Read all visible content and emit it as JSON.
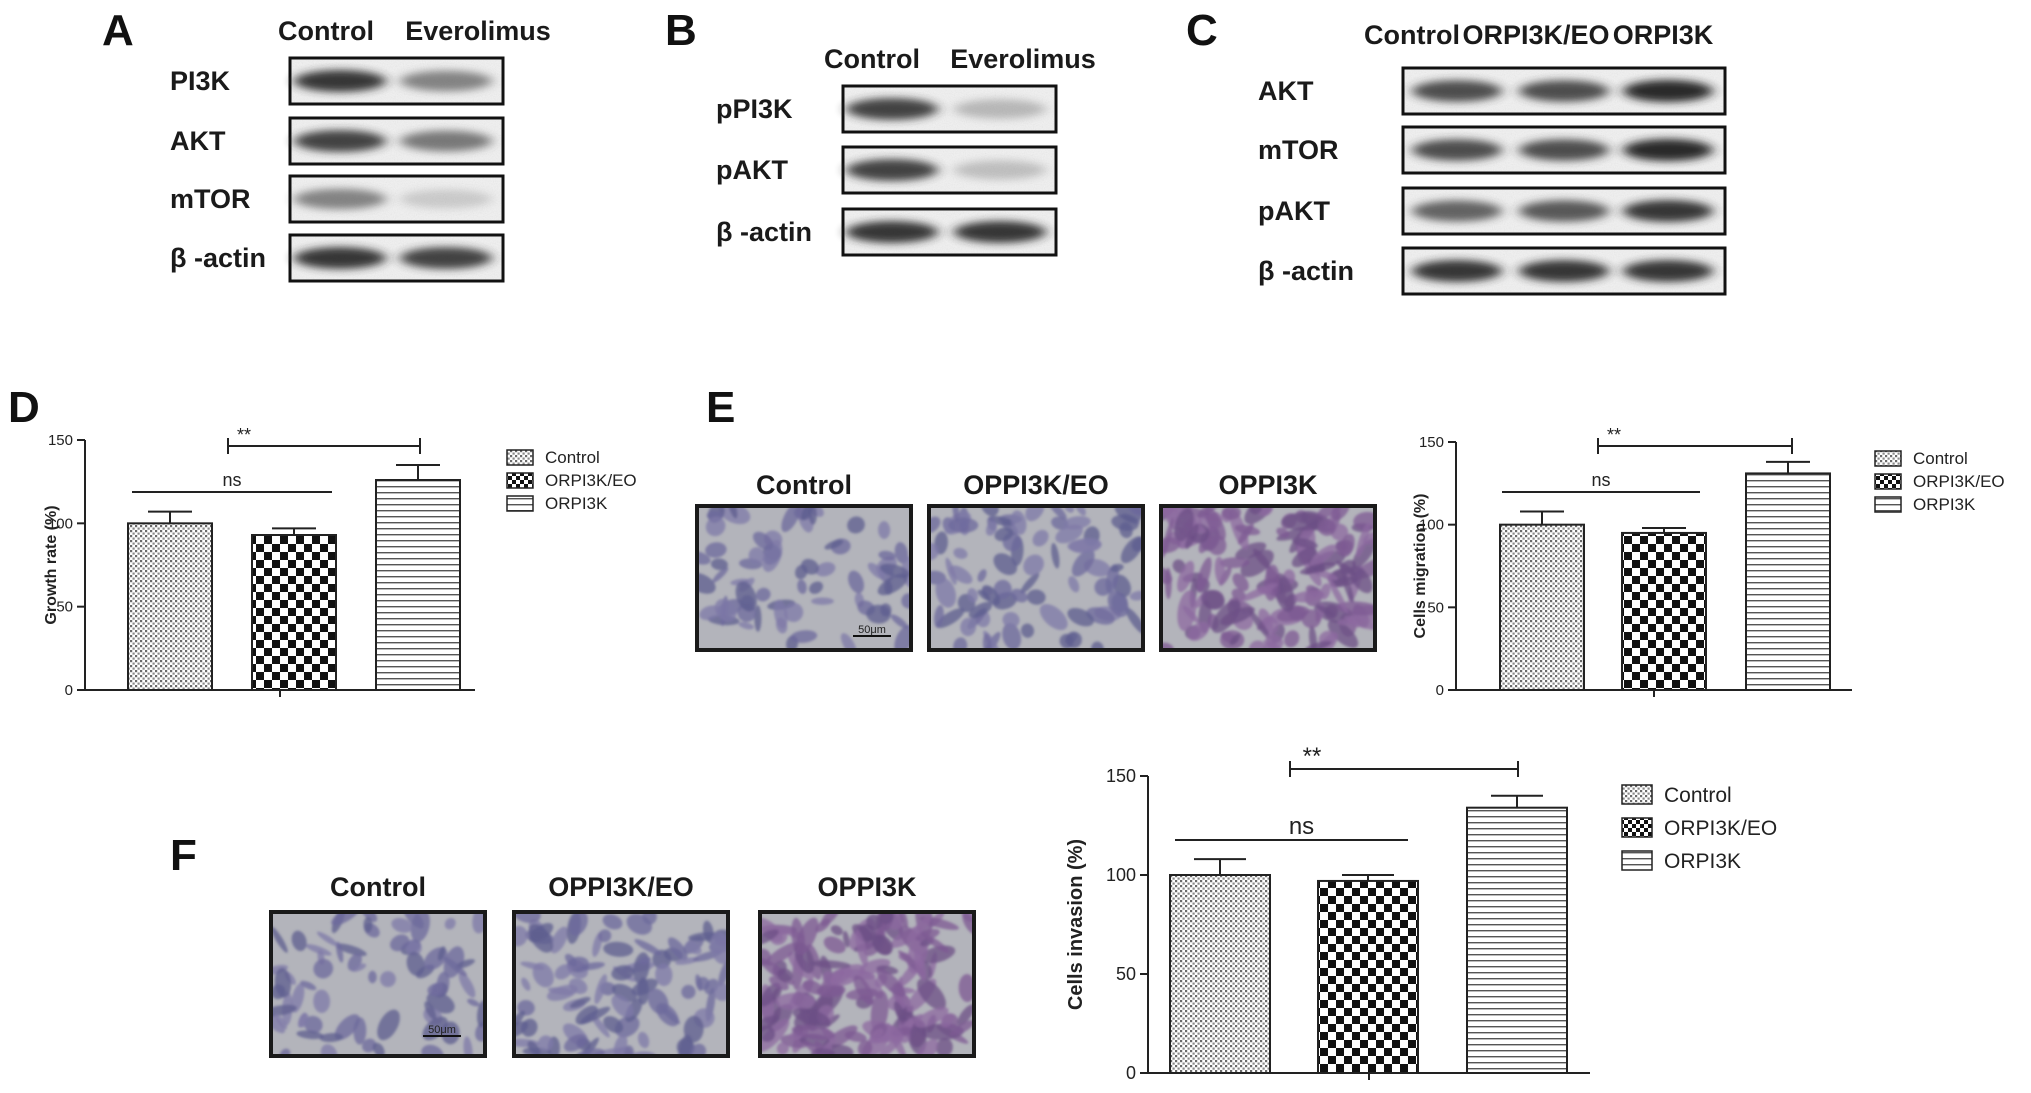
{
  "panels": {
    "A": {
      "label": "A",
      "lanes": [
        "Control",
        "Everolimus"
      ],
      "rows": [
        {
          "name": "PI3K",
          "intensity": [
            0.9,
            0.55
          ]
        },
        {
          "name": "AKT",
          "intensity": [
            0.85,
            0.6
          ]
        },
        {
          "name": "mTOR",
          "intensity": [
            0.55,
            0.12
          ]
        },
        {
          "name": "β -actin",
          "intensity": [
            0.9,
            0.85
          ]
        }
      ]
    },
    "B": {
      "label": "B",
      "lanes": [
        "Control",
        "Everolimus"
      ],
      "rows": [
        {
          "name": "pPI3K",
          "intensity": [
            0.85,
            0.25
          ]
        },
        {
          "name": "pAKT",
          "intensity": [
            0.85,
            0.2
          ]
        },
        {
          "name": "β -actin",
          "intensity": [
            0.9,
            0.9
          ]
        }
      ]
    },
    "C": {
      "label": "C",
      "lanes": [
        "Control",
        "ORPI3K/EO",
        "ORPI3K"
      ],
      "rows": [
        {
          "name": "AKT",
          "intensity": [
            0.8,
            0.8,
            0.95
          ]
        },
        {
          "name": "mTOR",
          "intensity": [
            0.8,
            0.8,
            0.95
          ]
        },
        {
          "name": "pAKT",
          "intensity": [
            0.7,
            0.75,
            0.9
          ]
        },
        {
          "name": "β -actin",
          "intensity": [
            0.9,
            0.9,
            0.9
          ]
        }
      ]
    },
    "D": {
      "label": "D"
    },
    "E": {
      "label": "E",
      "images": [
        "Control",
        "OPPI3K/EO",
        "OPPI3K"
      ],
      "scale_bar": "50μm"
    },
    "F": {
      "label": "F",
      "images": [
        "Control",
        "OPPI3K/EO",
        "OPPI3K"
      ],
      "scale_bar": "50μm"
    }
  },
  "chart_data": [
    {
      "panel": "D",
      "type": "bar",
      "categories": [
        "Control",
        "ORPI3K/EO",
        "ORPI3K"
      ],
      "values": [
        100,
        93,
        126
      ],
      "errors": [
        7,
        4,
        9
      ],
      "ylabel": "Growth rate (%)",
      "ylim": [
        0,
        150
      ],
      "yticks": [
        0,
        50,
        100,
        150
      ],
      "legend": [
        "Control",
        "ORPI3K/EO",
        "ORPI3K"
      ],
      "legend_position": "right",
      "annotations": [
        {
          "text": "**",
          "between": [
            "ORPI3K/EO",
            "ORPI3K"
          ]
        },
        {
          "text": "ns",
          "between": [
            "Control",
            "ORPI3K/EO"
          ]
        }
      ]
    },
    {
      "panel": "E",
      "type": "bar",
      "categories": [
        "Control",
        "ORPI3K/EO",
        "ORPI3K"
      ],
      "values": [
        100,
        95,
        131
      ],
      "errors": [
        8,
        3,
        7
      ],
      "ylabel": "Cells migration (%)",
      "ylim": [
        0,
        150
      ],
      "yticks": [
        0,
        50,
        100,
        150
      ],
      "legend": [
        "Control",
        "ORPI3K/EO",
        "ORPI3K"
      ],
      "legend_position": "right",
      "annotations": [
        {
          "text": "**",
          "between": [
            "ORPI3K/EO",
            "ORPI3K"
          ]
        },
        {
          "text": "ns",
          "between": [
            "Control",
            "ORPI3K/EO"
          ]
        }
      ]
    },
    {
      "panel": "F",
      "type": "bar",
      "categories": [
        "Control",
        "ORPI3K/EO",
        "ORPI3K"
      ],
      "values": [
        100,
        97,
        134
      ],
      "errors": [
        8,
        3,
        6
      ],
      "ylabel": "Cells invasion (%)",
      "ylim": [
        0,
        150
      ],
      "yticks": [
        0,
        50,
        100,
        150
      ],
      "legend": [
        "Control",
        "ORPI3K/EO",
        "ORPI3K"
      ],
      "legend_position": "right",
      "annotations": [
        {
          "text": "**",
          "between": [
            "ORPI3K/EO",
            "ORPI3K"
          ]
        },
        {
          "text": "ns",
          "between": [
            "Control",
            "ORPI3K/EO"
          ]
        }
      ]
    }
  ]
}
